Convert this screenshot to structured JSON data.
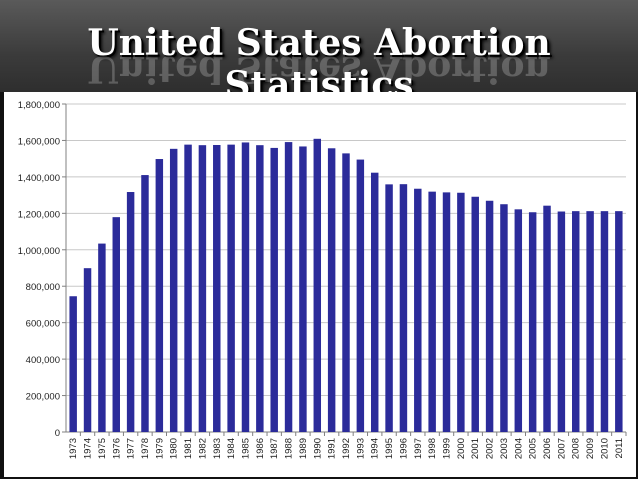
{
  "slide": {
    "title": "United States Abortion Statistics"
  },
  "colors": {
    "bar": "#2b2b9a",
    "grid": "#c8c8c8",
    "axis": "#808080",
    "header": "#444444"
  },
  "chart_data": {
    "type": "bar",
    "title": "",
    "xlabel": "",
    "ylabel": "",
    "ylim": [
      0,
      1800000
    ],
    "yticks": [
      0,
      200000,
      400000,
      600000,
      800000,
      1000000,
      1200000,
      1400000,
      1600000,
      1800000
    ],
    "ytick_labels": [
      "0",
      "200,000",
      "400,000",
      "600,000",
      "800,000",
      "1,000,000",
      "1,200,000",
      "1,400,000",
      "1,600,000",
      "1,800,000"
    ],
    "grid": true,
    "categories": [
      "1973",
      "1974",
      "1975",
      "1976",
      "1977",
      "1978",
      "1979",
      "1980",
      "1981",
      "1982",
      "1983",
      "1984",
      "1985",
      "1986",
      "1987",
      "1988",
      "1989",
      "1990",
      "1991",
      "1992",
      "1993",
      "1994",
      "1995",
      "1996",
      "1997",
      "1998",
      "1999",
      "2000",
      "2001",
      "2002",
      "2003",
      "2004",
      "2005",
      "2006",
      "2007",
      "2008",
      "2009",
      "2010",
      "2011"
    ],
    "values": [
      745000,
      899000,
      1034000,
      1179000,
      1317000,
      1410000,
      1498000,
      1554000,
      1577000,
      1574000,
      1575000,
      1577000,
      1589000,
      1574000,
      1559000,
      1591000,
      1567000,
      1609000,
      1557000,
      1529000,
      1495000,
      1423000,
      1359000,
      1360000,
      1335000,
      1319000,
      1315000,
      1313000,
      1291000,
      1269000,
      1250000,
      1222000,
      1206000,
      1242000,
      1210000,
      1212000,
      1212000,
      1212000,
      1212000
    ]
  }
}
